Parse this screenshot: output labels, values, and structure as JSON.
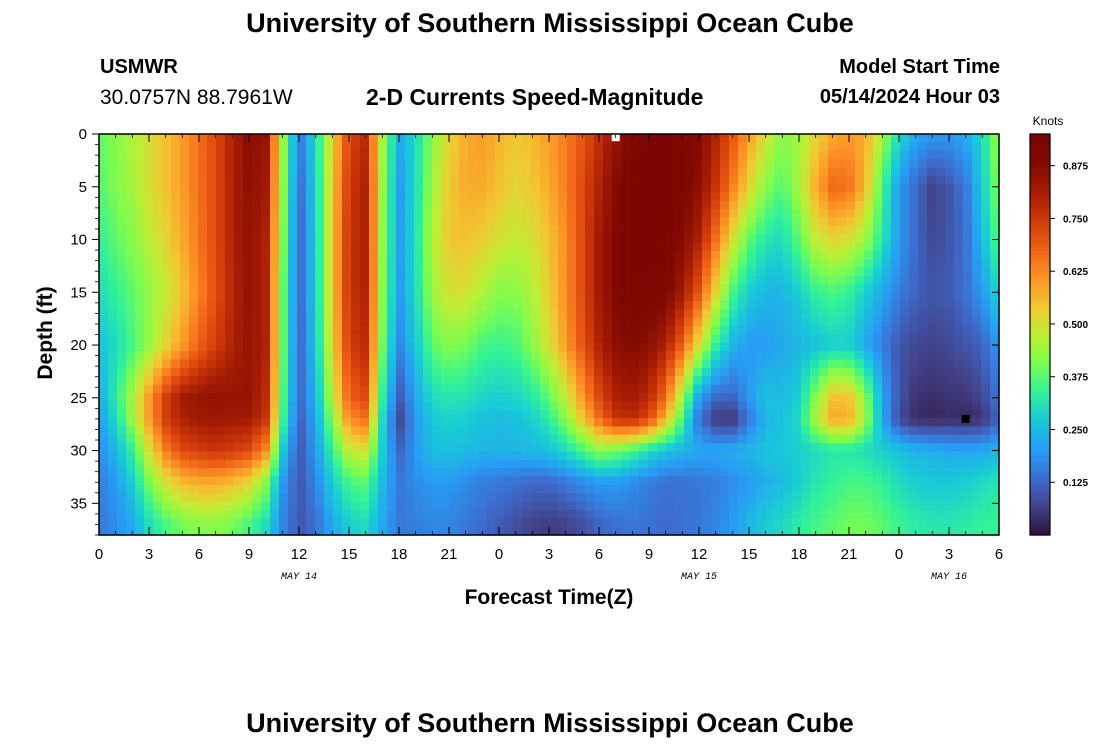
{
  "header": {
    "title": "University of Southern Mississippi Ocean Cube",
    "station_id": "USMWR",
    "station_coords": "30.0757N  88.7961W",
    "subtitle": "2-D Currents Speed-Magnitude",
    "model_start_label": "Model Start Time",
    "model_start_value": "05/14/2024 Hour 03"
  },
  "footer": {
    "title": "University of Southern Mississippi Ocean Cube"
  },
  "chart_data": {
    "type": "heatmap",
    "title": "2-D Currents Speed-Magnitude",
    "xlabel": "Forecast Time(Z)",
    "ylabel": "Depth (ft)",
    "colorbar_label": "Knots",
    "x_hours": [
      0,
      3,
      6,
      9,
      12,
      15,
      18,
      21,
      24,
      27,
      30,
      33,
      36,
      39,
      42,
      45,
      48,
      51,
      54
    ],
    "x_tick_labels": [
      "0",
      "3",
      "6",
      "9",
      "12",
      "15",
      "18",
      "21",
      "0",
      "3",
      "6",
      "9",
      "12",
      "15",
      "18",
      "21",
      "0",
      "3",
      "6"
    ],
    "date_labels": [
      {
        "hour": 12,
        "label": "MAY 14"
      },
      {
        "hour": 36,
        "label": "MAY 15"
      },
      {
        "hour": 51,
        "label": "MAY 16"
      }
    ],
    "x_range": [
      0,
      54
    ],
    "y_range": [
      0,
      38
    ],
    "y_ticks": [
      0,
      5,
      10,
      15,
      20,
      25,
      30,
      35
    ],
    "colorbar_range": [
      0,
      0.95
    ],
    "colorbar_ticks": [
      "0.125",
      "0.250",
      "0.375",
      "0.500",
      "0.625",
      "0.750",
      "0.875"
    ],
    "colorbar_tick_values": [
      0.125,
      0.25,
      0.375,
      0.5,
      0.625,
      0.75,
      0.875
    ],
    "time_hours": [
      0,
      1,
      2,
      3,
      4,
      5,
      6,
      7,
      8,
      9,
      10,
      11,
      12,
      13,
      14,
      15,
      16,
      17,
      18,
      19,
      20,
      21,
      22,
      23,
      24,
      25,
      26,
      27,
      28,
      29,
      30,
      31,
      32,
      33,
      34,
      35,
      36,
      37,
      38,
      39,
      40,
      41,
      42,
      43,
      44,
      45,
      46,
      47,
      48,
      49,
      50,
      51,
      52,
      53,
      54
    ],
    "depths_ft": [
      0,
      5,
      10,
      15,
      20,
      25,
      27,
      30,
      33,
      37
    ],
    "speed_knots": [
      [
        0.38,
        0.42,
        0.46,
        0.5,
        0.55,
        0.6,
        0.66,
        0.72,
        0.8,
        0.87,
        0.84,
        0.45,
        0.15,
        0.3,
        0.52,
        0.72,
        0.78,
        0.45,
        0.22,
        0.3,
        0.42,
        0.52,
        0.58,
        0.6,
        0.57,
        0.54,
        0.56,
        0.6,
        0.64,
        0.7,
        0.77,
        0.84,
        0.9,
        0.93,
        0.93,
        0.92,
        0.88,
        0.8,
        0.7,
        0.6,
        0.5,
        0.42,
        0.45,
        0.52,
        0.58,
        0.6,
        0.58,
        0.45,
        0.3,
        0.22,
        0.2,
        0.2,
        0.22,
        0.3,
        0.45
      ],
      [
        0.37,
        0.41,
        0.45,
        0.5,
        0.55,
        0.6,
        0.66,
        0.72,
        0.8,
        0.86,
        0.82,
        0.44,
        0.13,
        0.28,
        0.54,
        0.75,
        0.8,
        0.44,
        0.2,
        0.3,
        0.44,
        0.54,
        0.58,
        0.58,
        0.55,
        0.52,
        0.54,
        0.58,
        0.64,
        0.72,
        0.8,
        0.88,
        0.92,
        0.93,
        0.93,
        0.91,
        0.86,
        0.76,
        0.64,
        0.52,
        0.42,
        0.37,
        0.45,
        0.58,
        0.67,
        0.66,
        0.56,
        0.36,
        0.2,
        0.13,
        0.07,
        0.1,
        0.15,
        0.28,
        0.42
      ],
      [
        0.34,
        0.38,
        0.42,
        0.47,
        0.52,
        0.58,
        0.65,
        0.72,
        0.8,
        0.85,
        0.8,
        0.42,
        0.12,
        0.28,
        0.54,
        0.76,
        0.8,
        0.43,
        0.2,
        0.31,
        0.46,
        0.54,
        0.55,
        0.53,
        0.5,
        0.48,
        0.5,
        0.55,
        0.62,
        0.72,
        0.82,
        0.89,
        0.92,
        0.93,
        0.92,
        0.88,
        0.8,
        0.66,
        0.5,
        0.38,
        0.32,
        0.3,
        0.38,
        0.48,
        0.52,
        0.5,
        0.44,
        0.32,
        0.2,
        0.13,
        0.08,
        0.1,
        0.14,
        0.25,
        0.38
      ],
      [
        0.3,
        0.34,
        0.38,
        0.43,
        0.48,
        0.55,
        0.63,
        0.71,
        0.79,
        0.85,
        0.8,
        0.4,
        0.12,
        0.28,
        0.54,
        0.76,
        0.8,
        0.42,
        0.2,
        0.3,
        0.44,
        0.5,
        0.5,
        0.46,
        0.42,
        0.42,
        0.46,
        0.53,
        0.62,
        0.72,
        0.82,
        0.89,
        0.92,
        0.92,
        0.9,
        0.82,
        0.7,
        0.52,
        0.36,
        0.28,
        0.24,
        0.24,
        0.28,
        0.34,
        0.36,
        0.34,
        0.28,
        0.22,
        0.16,
        0.12,
        0.1,
        0.11,
        0.14,
        0.2,
        0.3
      ],
      [
        0.26,
        0.3,
        0.36,
        0.43,
        0.52,
        0.6,
        0.68,
        0.74,
        0.8,
        0.84,
        0.8,
        0.4,
        0.12,
        0.27,
        0.52,
        0.74,
        0.78,
        0.4,
        0.17,
        0.27,
        0.38,
        0.42,
        0.4,
        0.36,
        0.35,
        0.36,
        0.42,
        0.5,
        0.6,
        0.7,
        0.8,
        0.86,
        0.88,
        0.86,
        0.8,
        0.68,
        0.5,
        0.34,
        0.24,
        0.2,
        0.2,
        0.22,
        0.24,
        0.26,
        0.28,
        0.28,
        0.22,
        0.16,
        0.1,
        0.08,
        0.07,
        0.08,
        0.1,
        0.12,
        0.2
      ],
      [
        0.22,
        0.33,
        0.45,
        0.6,
        0.74,
        0.82,
        0.84,
        0.85,
        0.84,
        0.84,
        0.78,
        0.38,
        0.12,
        0.24,
        0.47,
        0.68,
        0.72,
        0.34,
        0.1,
        0.22,
        0.3,
        0.32,
        0.31,
        0.29,
        0.28,
        0.29,
        0.32,
        0.38,
        0.48,
        0.6,
        0.72,
        0.8,
        0.82,
        0.78,
        0.66,
        0.44,
        0.2,
        0.13,
        0.12,
        0.2,
        0.26,
        0.25,
        0.28,
        0.42,
        0.55,
        0.55,
        0.42,
        0.22,
        0.1,
        0.05,
        0.04,
        0.05,
        0.05,
        0.08,
        0.15
      ],
      [
        0.2,
        0.3,
        0.44,
        0.6,
        0.74,
        0.8,
        0.82,
        0.83,
        0.82,
        0.82,
        0.76,
        0.36,
        0.11,
        0.22,
        0.42,
        0.62,
        0.66,
        0.3,
        0.07,
        0.2,
        0.27,
        0.29,
        0.28,
        0.26,
        0.25,
        0.26,
        0.28,
        0.33,
        0.42,
        0.54,
        0.66,
        0.76,
        0.78,
        0.72,
        0.56,
        0.36,
        0.14,
        0.06,
        0.05,
        0.15,
        0.24,
        0.26,
        0.3,
        0.46,
        0.58,
        0.58,
        0.44,
        0.22,
        0.08,
        0.04,
        0.03,
        0.04,
        0.03,
        0.05,
        0.12
      ],
      [
        0.18,
        0.24,
        0.34,
        0.5,
        0.64,
        0.72,
        0.74,
        0.76,
        0.74,
        0.72,
        0.62,
        0.28,
        0.1,
        0.2,
        0.34,
        0.48,
        0.5,
        0.28,
        0.12,
        0.2,
        0.25,
        0.26,
        0.25,
        0.24,
        0.24,
        0.24,
        0.25,
        0.26,
        0.3,
        0.36,
        0.42,
        0.4,
        0.36,
        0.3,
        0.26,
        0.24,
        0.22,
        0.22,
        0.23,
        0.24,
        0.26,
        0.27,
        0.28,
        0.3,
        0.32,
        0.32,
        0.3,
        0.28,
        0.26,
        0.24,
        0.23,
        0.22,
        0.22,
        0.22,
        0.24
      ],
      [
        0.16,
        0.2,
        0.28,
        0.4,
        0.5,
        0.56,
        0.58,
        0.58,
        0.56,
        0.52,
        0.42,
        0.2,
        0.1,
        0.17,
        0.28,
        0.36,
        0.38,
        0.25,
        0.15,
        0.18,
        0.2,
        0.2,
        0.18,
        0.16,
        0.15,
        0.14,
        0.13,
        0.13,
        0.15,
        0.18,
        0.2,
        0.2,
        0.18,
        0.16,
        0.14,
        0.14,
        0.15,
        0.16,
        0.18,
        0.2,
        0.23,
        0.25,
        0.28,
        0.32,
        0.34,
        0.36,
        0.36,
        0.34,
        0.3,
        0.28,
        0.27,
        0.27,
        0.28,
        0.3,
        0.32
      ],
      [
        0.15,
        0.18,
        0.22,
        0.3,
        0.36,
        0.4,
        0.42,
        0.42,
        0.4,
        0.36,
        0.3,
        0.17,
        0.1,
        0.14,
        0.22,
        0.28,
        0.3,
        0.22,
        0.15,
        0.16,
        0.17,
        0.17,
        0.15,
        0.13,
        0.11,
        0.09,
        0.07,
        0.06,
        0.07,
        0.09,
        0.12,
        0.14,
        0.15,
        0.14,
        0.13,
        0.14,
        0.15,
        0.17,
        0.2,
        0.24,
        0.28,
        0.3,
        0.33,
        0.36,
        0.38,
        0.4,
        0.4,
        0.38,
        0.35,
        0.33,
        0.32,
        0.32,
        0.33,
        0.34,
        0.35
      ]
    ],
    "markers": [
      {
        "hour": 31,
        "depth": 0.3,
        "color": "#ffffff"
      },
      {
        "hour": 52,
        "depth": 27,
        "color": "#000000"
      }
    ]
  }
}
